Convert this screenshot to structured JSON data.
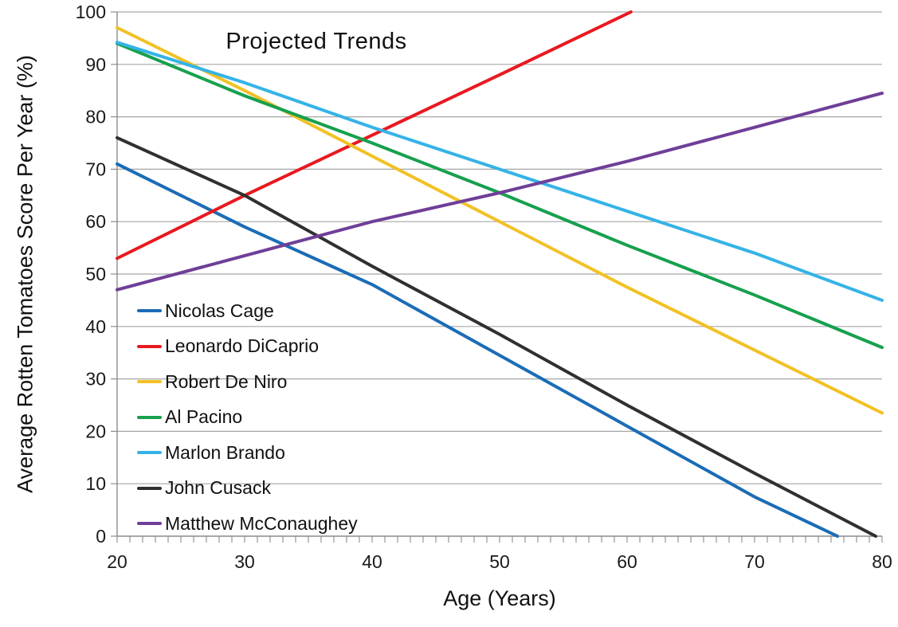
{
  "chart_data": {
    "type": "line",
    "title": "Projected Trends",
    "xlabel": "Age (Years)",
    "ylabel": "Average Rotten Tomatoes Score Per Year (%)",
    "xlim": [
      20,
      80
    ],
    "ylim": [
      0,
      100
    ],
    "x_ticks": [
      20,
      30,
      40,
      50,
      60,
      70,
      80
    ],
    "y_ticks": [
      0,
      10,
      20,
      30,
      40,
      50,
      60,
      70,
      80,
      90,
      100
    ],
    "x_minor_tick_step": 1,
    "grid": "horizontal-only",
    "legend_position": "inside-left",
    "series": [
      {
        "name": "Nicolas Cage",
        "color": "#1b6cb5",
        "points": [
          [
            20,
            71
          ],
          [
            30,
            59
          ],
          [
            40,
            48
          ],
          [
            50,
            34.5
          ],
          [
            60,
            21
          ],
          [
            70,
            7.5
          ],
          [
            76.5,
            0
          ]
        ]
      },
      {
        "name": "Leonardo DiCaprio",
        "color": "#e8191f",
        "points": [
          [
            20,
            53
          ],
          [
            30,
            65
          ],
          [
            40,
            76.5
          ],
          [
            50,
            88
          ],
          [
            60.3,
            100
          ]
        ]
      },
      {
        "name": "Robert De Niro",
        "color": "#f2c125",
        "points": [
          [
            20,
            97
          ],
          [
            30,
            85
          ],
          [
            40,
            72.5
          ],
          [
            50,
            60
          ],
          [
            60,
            47.5
          ],
          [
            70,
            35.5
          ],
          [
            80,
            23.5
          ]
        ]
      },
      {
        "name": "Al Pacino",
        "color": "#17a04e",
        "points": [
          [
            20,
            94
          ],
          [
            30,
            84
          ],
          [
            40,
            75
          ],
          [
            50,
            65.5
          ],
          [
            60,
            55.5
          ],
          [
            70,
            46
          ],
          [
            80,
            36
          ]
        ]
      },
      {
        "name": "Marlon Brando",
        "color": "#35b3e7",
        "points": [
          [
            20,
            94.2
          ],
          [
            30,
            86.5
          ],
          [
            40,
            78
          ],
          [
            50,
            70
          ],
          [
            60,
            62
          ],
          [
            70,
            54
          ],
          [
            80,
            45
          ]
        ]
      },
      {
        "name": "John Cusack",
        "color": "#303030",
        "points": [
          [
            20,
            76
          ],
          [
            30,
            65
          ],
          [
            40,
            51.5
          ],
          [
            50,
            38.5
          ],
          [
            60,
            25
          ],
          [
            70,
            12
          ],
          [
            79.5,
            0
          ]
        ]
      },
      {
        "name": "Matthew McConaughey",
        "color": "#6f3f98",
        "points": [
          [
            20,
            47
          ],
          [
            30,
            53.5
          ],
          [
            40,
            60
          ],
          [
            50,
            65.5
          ],
          [
            60,
            71.5
          ],
          [
            70,
            78
          ],
          [
            80,
            84.5
          ]
        ]
      }
    ]
  },
  "colors": {
    "background": "#ffffff",
    "grid": "#a6a6a6",
    "axis": "#8c8c8c",
    "text": "#1a1a1a",
    "line_width": 4
  }
}
